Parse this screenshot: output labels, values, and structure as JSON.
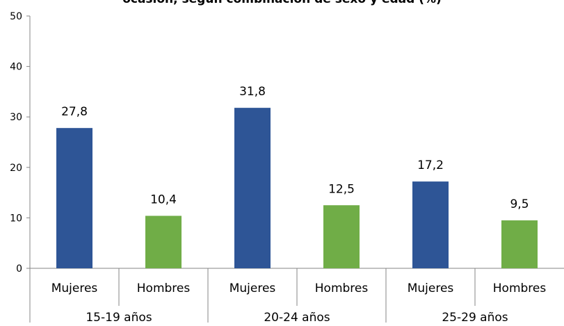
{
  "chart_data": {
    "type": "bar",
    "title": "ocasión, según combinación de sexo y edad (%)",
    "xlabel": "",
    "ylabel": "",
    "ylim": [
      0,
      50
    ],
    "yticks": [
      0,
      10,
      20,
      30,
      40,
      50
    ],
    "grid": false,
    "legend": "none",
    "groups": [
      "15-19 años",
      "20-24 años",
      "25-29 años"
    ],
    "categories": [
      "Mujeres",
      "Hombres",
      "Mujeres",
      "Hombres",
      "Mujeres",
      "Hombres"
    ],
    "values": [
      27.8,
      10.4,
      31.8,
      12.5,
      17.2,
      9.5
    ],
    "value_labels": [
      "27,8",
      "10,4",
      "31,8",
      "12,5",
      "17,2",
      "9,5"
    ],
    "colors": {
      "Mujeres": "#2e5596",
      "Hombres": "#70ad47",
      "axis": "#868686"
    }
  }
}
